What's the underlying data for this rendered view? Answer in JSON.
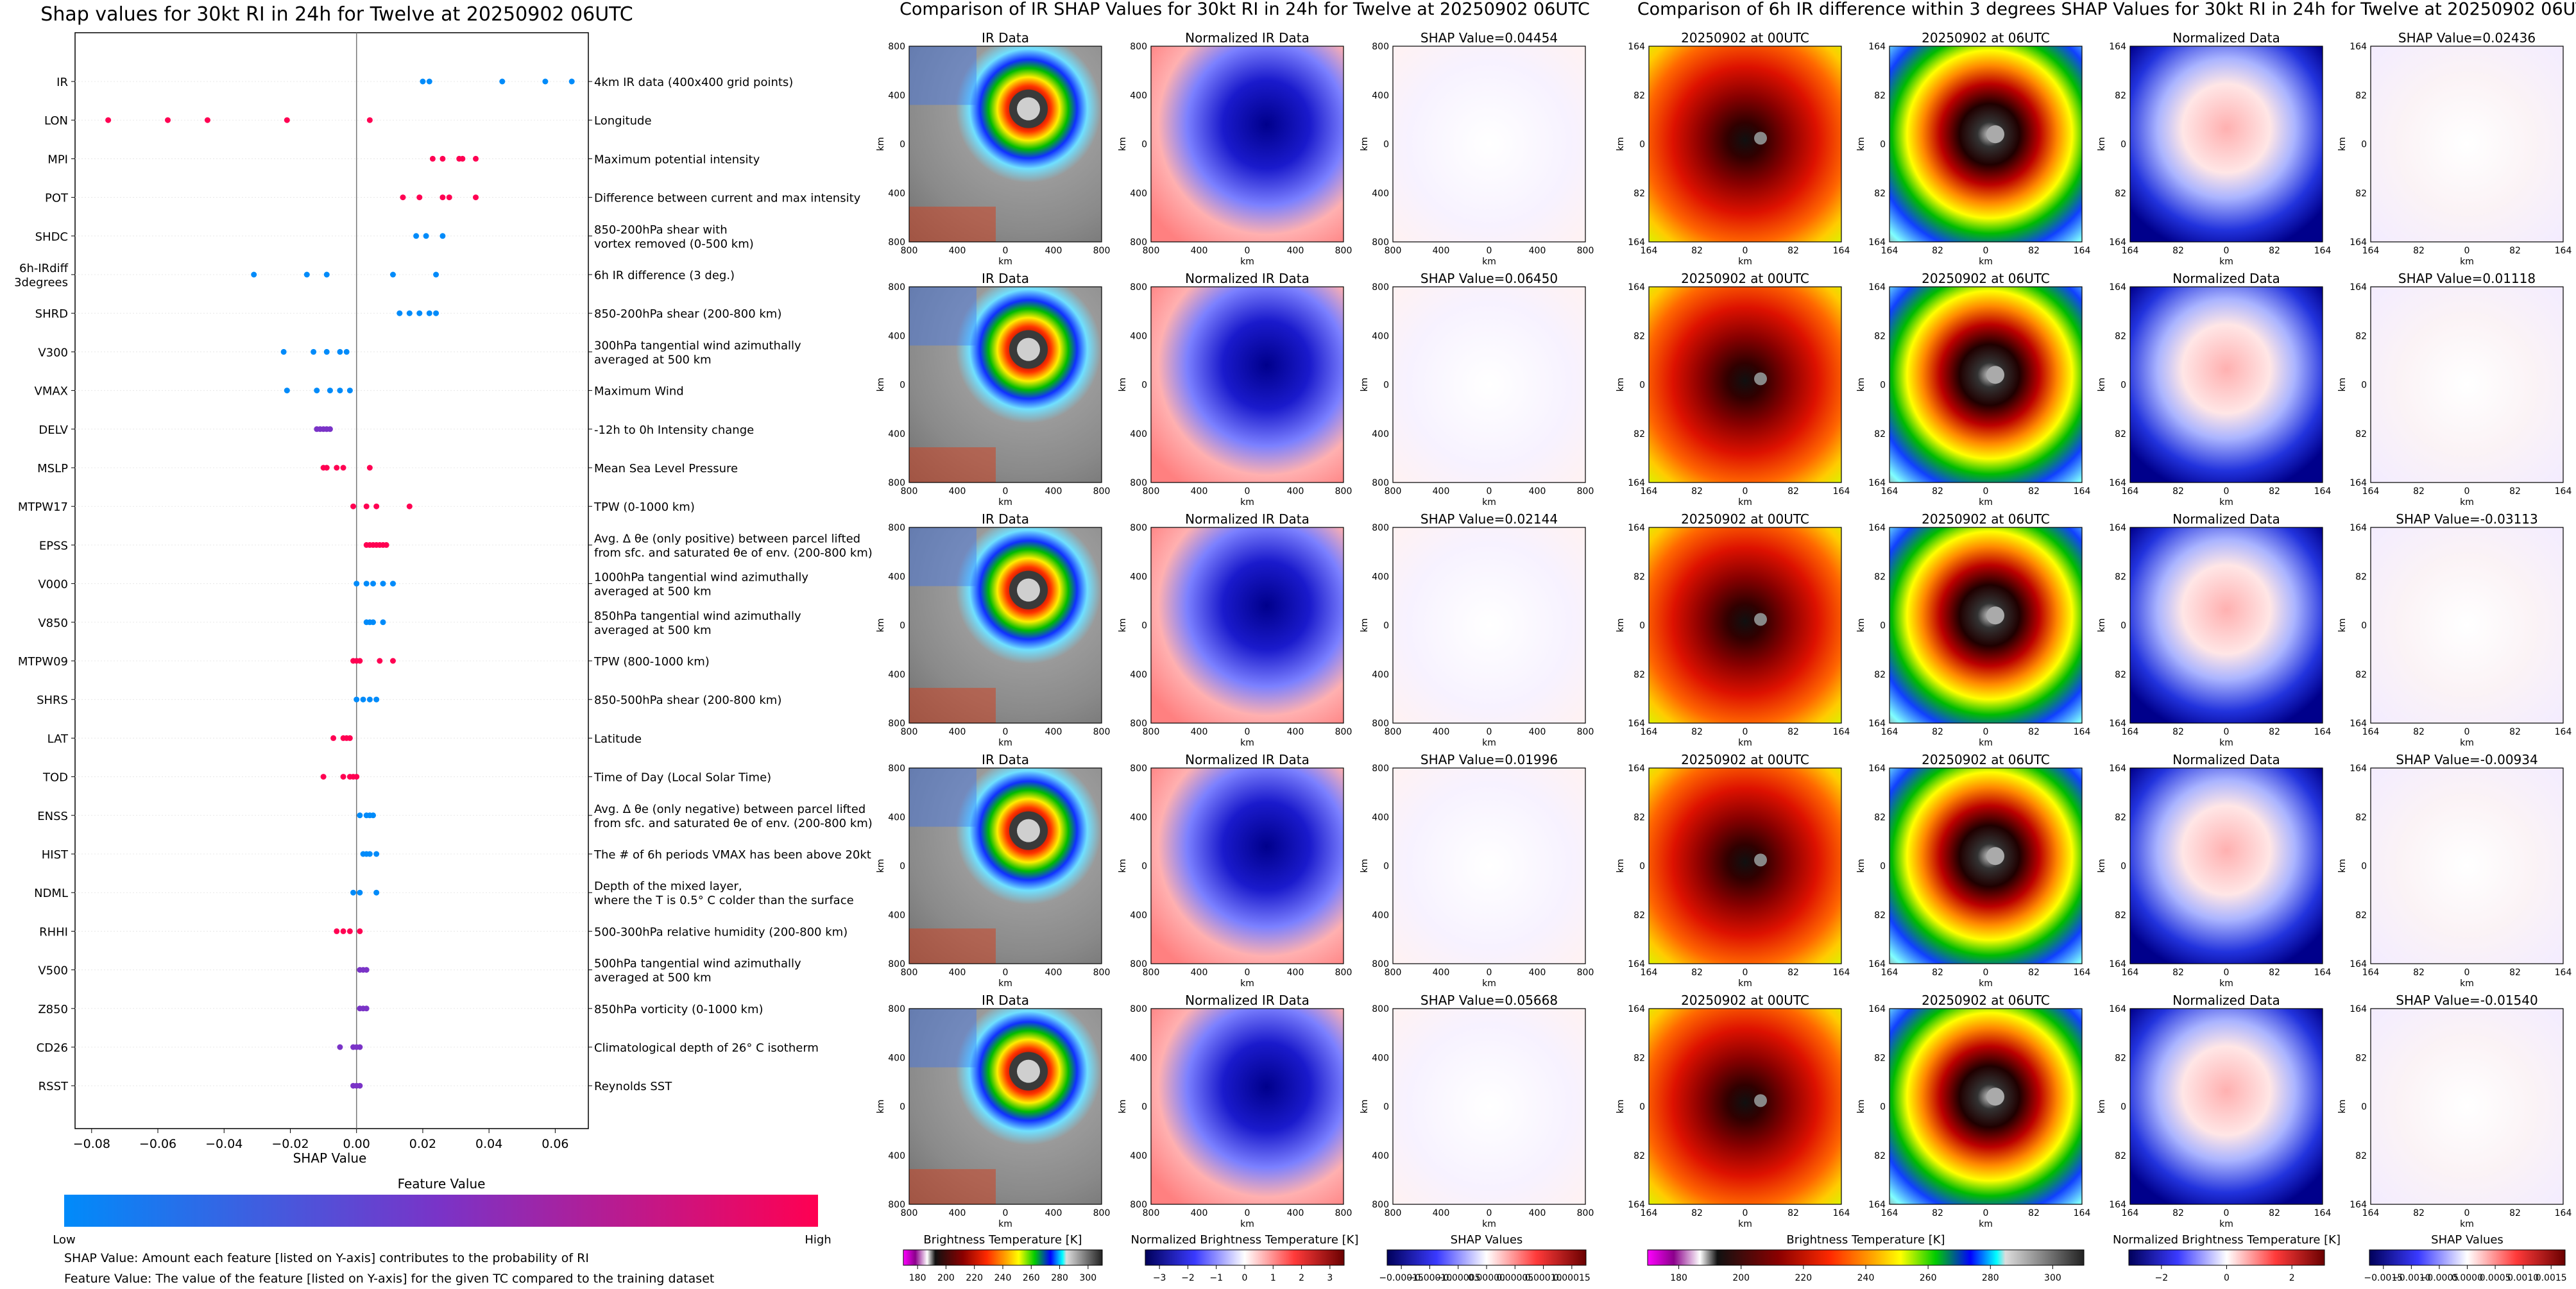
{
  "titles": {
    "shap": "Shap values for 30kt RI in 24h for Twelve at 20250902 06UTC",
    "ir": "Comparison of IR SHAP Values for 30kt RI in 24h for Twelve at 20250902 06UTC",
    "diff": "Comparison of 6h IR difference within 3 degrees SHAP Values for 30kt RI in 24h for Twelve at 20250902 06UTC"
  },
  "colorbar": {
    "title": "Feature Value",
    "low": "Low",
    "high": "High",
    "colors": [
      "#008bfa",
      "#7a33c7",
      "#ff0052"
    ]
  },
  "footnotes": [
    "SHAP Value: Amount each feature [listed on Y-axis] contributes to the probability of RI",
    "Feature Value: The value of the feature [listed on Y-axis] for the given TC compared to the training dataset"
  ],
  "chart_data": [
    {
      "type": "scatter",
      "title": "Shap values for 30kt RI in 24h for Twelve at 20250902 06UTC",
      "xlabel": "SHAP Value",
      "xlim": [
        -0.085,
        0.07
      ],
      "xticks": [
        "−0.08",
        "−0.06",
        "−0.04",
        "−0.02",
        "0.00",
        "0.02",
        "0.04",
        "0.06"
      ],
      "xtick_values": [
        -0.08,
        -0.06,
        -0.04,
        -0.02,
        0.0,
        0.02,
        0.04,
        0.06
      ],
      "features": [
        {
          "name": "IR",
          "desc": [
            "4km IR data (400x400 grid points)"
          ],
          "points": [
            [
              0.02,
              "b"
            ],
            [
              0.022,
              "b"
            ],
            [
              0.044,
              "b"
            ],
            [
              0.057,
              "b"
            ],
            [
              0.065,
              "b"
            ]
          ]
        },
        {
          "name": "LON",
          "desc": [
            "Longitude"
          ],
          "points": [
            [
              -0.075,
              "r"
            ],
            [
              -0.057,
              "r"
            ],
            [
              -0.045,
              "r"
            ],
            [
              -0.021,
              "r"
            ],
            [
              0.004,
              "r"
            ]
          ]
        },
        {
          "name": "MPI",
          "desc": [
            "Maximum potential intensity"
          ],
          "points": [
            [
              0.023,
              "r"
            ],
            [
              0.026,
              "r"
            ],
            [
              0.031,
              "r"
            ],
            [
              0.032,
              "r"
            ],
            [
              0.036,
              "r"
            ]
          ]
        },
        {
          "name": "POT",
          "desc": [
            "Difference between current and max intensity"
          ],
          "points": [
            [
              0.014,
              "r"
            ],
            [
              0.019,
              "r"
            ],
            [
              0.026,
              "r"
            ],
            [
              0.028,
              "r"
            ],
            [
              0.036,
              "r"
            ]
          ]
        },
        {
          "name": "SHDC",
          "desc": [
            "850-200hPa shear with",
            "vortex removed (0-500 km)"
          ],
          "points": [
            [
              0.018,
              "b"
            ],
            [
              0.021,
              "b"
            ],
            [
              0.026,
              "b"
            ]
          ]
        },
        {
          "name": "6h-IRdiff\n3degrees",
          "desc": [
            "6h IR difference (3 deg.)"
          ],
          "points": [
            [
              -0.031,
              "b"
            ],
            [
              -0.015,
              "b"
            ],
            [
              -0.009,
              "b"
            ],
            [
              0.011,
              "b"
            ],
            [
              0.024,
              "b"
            ]
          ]
        },
        {
          "name": "SHRD",
          "desc": [
            "850-200hPa shear (200-800 km)"
          ],
          "points": [
            [
              0.013,
              "b"
            ],
            [
              0.016,
              "b"
            ],
            [
              0.019,
              "b"
            ],
            [
              0.022,
              "b"
            ],
            [
              0.024,
              "b"
            ]
          ]
        },
        {
          "name": "V300",
          "desc": [
            "300hPa tangential wind azimuthally",
            "averaged at 500 km"
          ],
          "points": [
            [
              -0.022,
              "b"
            ],
            [
              -0.013,
              "b"
            ],
            [
              -0.009,
              "b"
            ],
            [
              -0.005,
              "b"
            ],
            [
              -0.003,
              "b"
            ]
          ]
        },
        {
          "name": "VMAX",
          "desc": [
            "Maximum Wind"
          ],
          "points": [
            [
              -0.021,
              "b"
            ],
            [
              -0.012,
              "b"
            ],
            [
              -0.008,
              "b"
            ],
            [
              -0.005,
              "b"
            ],
            [
              -0.002,
              "b"
            ]
          ]
        },
        {
          "name": "DELV",
          "desc": [
            "-12h to 0h Intensity change"
          ],
          "points": [
            [
              -0.012,
              "p"
            ],
            [
              -0.011,
              "p"
            ],
            [
              -0.01,
              "p"
            ],
            [
              -0.009,
              "p"
            ],
            [
              -0.008,
              "p"
            ]
          ]
        },
        {
          "name": "MSLP",
          "desc": [
            "Mean Sea Level Pressure"
          ],
          "points": [
            [
              -0.01,
              "r"
            ],
            [
              -0.009,
              "r"
            ],
            [
              -0.006,
              "r"
            ],
            [
              -0.004,
              "r"
            ],
            [
              0.004,
              "r"
            ]
          ]
        },
        {
          "name": "MTPW17",
          "desc": [
            "TPW (0-1000 km)"
          ],
          "points": [
            [
              -0.001,
              "r"
            ],
            [
              0.003,
              "r"
            ],
            [
              0.006,
              "r"
            ],
            [
              0.016,
              "r"
            ]
          ]
        },
        {
          "name": "EPSS",
          "desc": [
            "Avg. Δ θe (only positive) between parcel lifted",
            "from sfc. and saturated θe of env. (200-800 km)"
          ],
          "points": [
            [
              0.003,
              "r"
            ],
            [
              0.004,
              "r"
            ],
            [
              0.005,
              "r"
            ],
            [
              0.006,
              "r"
            ],
            [
              0.007,
              "r"
            ],
            [
              0.008,
              "r"
            ],
            [
              0.009,
              "r"
            ]
          ]
        },
        {
          "name": "V000",
          "desc": [
            "1000hPa tangential wind azimuthally",
            "averaged at 500 km"
          ],
          "points": [
            [
              0.0,
              "b"
            ],
            [
              0.003,
              "b"
            ],
            [
              0.005,
              "b"
            ],
            [
              0.008,
              "b"
            ],
            [
              0.011,
              "b"
            ]
          ]
        },
        {
          "name": "V850",
          "desc": [
            "850hPa tangential wind azimuthally",
            "averaged at 500 km"
          ],
          "points": [
            [
              0.003,
              "b"
            ],
            [
              0.004,
              "b"
            ],
            [
              0.005,
              "b"
            ],
            [
              0.008,
              "b"
            ]
          ]
        },
        {
          "name": "MTPW09",
          "desc": [
            "TPW (800-1000 km)"
          ],
          "points": [
            [
              -0.001,
              "r"
            ],
            [
              0.0,
              "r"
            ],
            [
              0.001,
              "r"
            ],
            [
              0.007,
              "r"
            ],
            [
              0.011,
              "r"
            ]
          ]
        },
        {
          "name": "SHRS",
          "desc": [
            "850-500hPa shear (200-800 km)"
          ],
          "points": [
            [
              0.0,
              "b"
            ],
            [
              0.002,
              "b"
            ],
            [
              0.004,
              "b"
            ],
            [
              0.006,
              "b"
            ]
          ]
        },
        {
          "name": "LAT",
          "desc": [
            "Latitude"
          ],
          "points": [
            [
              -0.007,
              "r"
            ],
            [
              -0.004,
              "r"
            ],
            [
              -0.003,
              "r"
            ],
            [
              -0.002,
              "r"
            ]
          ]
        },
        {
          "name": "TOD",
          "desc": [
            "Time of Day (Local Solar Time)"
          ],
          "points": [
            [
              -0.01,
              "r"
            ],
            [
              -0.004,
              "r"
            ],
            [
              -0.002,
              "r"
            ],
            [
              -0.001,
              "r"
            ],
            [
              0.0,
              "r"
            ]
          ]
        },
        {
          "name": "ENSS",
          "desc": [
            "Avg. Δ θe (only negative) between parcel lifted",
            "from sfc. and saturated θe of env. (200-800 km)"
          ],
          "points": [
            [
              0.001,
              "b"
            ],
            [
              0.003,
              "b"
            ],
            [
              0.004,
              "b"
            ],
            [
              0.005,
              "b"
            ]
          ]
        },
        {
          "name": "HIST",
          "desc": [
            "The # of 6h periods VMAX has been above 20kt"
          ],
          "points": [
            [
              0.002,
              "b"
            ],
            [
              0.003,
              "b"
            ],
            [
              0.004,
              "b"
            ],
            [
              0.006,
              "b"
            ]
          ]
        },
        {
          "name": "NDML",
          "desc": [
            "Depth of the mixed layer,",
            "where the T is 0.5° C colder than the surface"
          ],
          "points": [
            [
              -0.001,
              "b"
            ],
            [
              0.001,
              "b"
            ],
            [
              0.006,
              "b"
            ]
          ]
        },
        {
          "name": "RHHI",
          "desc": [
            "500-300hPa relative humidity (200-800 km)"
          ],
          "points": [
            [
              -0.006,
              "r"
            ],
            [
              -0.004,
              "r"
            ],
            [
              -0.002,
              "r"
            ],
            [
              0.001,
              "r"
            ]
          ]
        },
        {
          "name": "V500",
          "desc": [
            "500hPa tangential wind azimuthally",
            "averaged at 500 km"
          ],
          "points": [
            [
              0.001,
              "p"
            ],
            [
              0.002,
              "p"
            ],
            [
              0.003,
              "p"
            ]
          ]
        },
        {
          "name": "Z850",
          "desc": [
            "850hPa vorticity (0-1000 km)"
          ],
          "points": [
            [
              0.001,
              "p"
            ],
            [
              0.002,
              "p"
            ],
            [
              0.003,
              "p"
            ]
          ]
        },
        {
          "name": "CD26",
          "desc": [
            "Climatological depth of 26° C isotherm"
          ],
          "points": [
            [
              -0.005,
              "p"
            ],
            [
              -0.001,
              "p"
            ],
            [
              0.0,
              "p"
            ],
            [
              0.001,
              "p"
            ]
          ]
        },
        {
          "name": "RSST",
          "desc": [
            "Reynolds SST"
          ],
          "points": [
            [
              -0.001,
              "p"
            ],
            [
              0.0,
              "p"
            ],
            [
              0.001,
              "p"
            ]
          ]
        }
      ]
    },
    {
      "type": "image-panel-grid",
      "title": "Comparison of IR SHAP Values for 30kt RI in 24h for Twelve at 20250902 06UTC",
      "columns": [
        "IR Data",
        "Normalized IR Data",
        "SHAP"
      ],
      "shap_values": [
        "SHAP Value=0.04454",
        "SHAP Value=0.06450",
        "SHAP Value=0.02144",
        "SHAP Value=0.01996",
        "SHAP Value=0.05668"
      ],
      "axis_ticks": [
        "800",
        "400",
        "0",
        "400",
        "800"
      ],
      "axis_ticks_x": [
        "800",
        "400",
        "0",
        "400",
        "800"
      ],
      "axis_label": "km"
    },
    {
      "type": "image-panel-grid",
      "title": "Comparison of 6h IR difference within 3 degrees SHAP Values for 30kt RI in 24h for Twelve at 20250902 06UTC",
      "columns": [
        "20250902 at 00UTC",
        "20250902 at 06UTC",
        "Normalized Data",
        "SHAP"
      ],
      "shap_values": [
        "SHAP Value=0.02436",
        "SHAP Value=0.01118",
        "SHAP Value=-0.03113",
        "SHAP Value=-0.00934",
        "SHAP Value=-0.01540"
      ],
      "axis_ticks": [
        "164",
        "82",
        "0",
        "82",
        "164"
      ],
      "axis_ticks_x": [
        "164",
        "82",
        "0",
        "82",
        "164"
      ],
      "axis_label": "km"
    }
  ],
  "colorbars": [
    {
      "label": "Brightness Temperature [K]",
      "ticks": [
        "180",
        "200",
        "220",
        "240",
        "260",
        "280",
        "300"
      ]
    },
    {
      "label": "Normalized Brightness Temperature [K]",
      "ticks": [
        "−3",
        "−2",
        "−1",
        "0",
        "1",
        "2",
        "3"
      ]
    },
    {
      "label": "SHAP Values",
      "ticks": [
        "−0.00015",
        "−0.00010",
        "−0.00005",
        "0.00000",
        "0.00005",
        "0.00010",
        "0.00015"
      ]
    },
    {
      "label": "Brightness Temperature [K]",
      "ticks": [
        "180",
        "200",
        "220",
        "240",
        "260",
        "280",
        "300"
      ]
    },
    {
      "label": "Normalized Brightness Temperature [K]",
      "ticks": [
        "−2",
        "0",
        "2"
      ]
    },
    {
      "label": "SHAP Values",
      "ticks": [
        "−0.0015",
        "−0.0010",
        "−0.0005",
        "0.0000",
        "0.0005",
        "0.0010",
        "0.0015"
      ]
    }
  ]
}
